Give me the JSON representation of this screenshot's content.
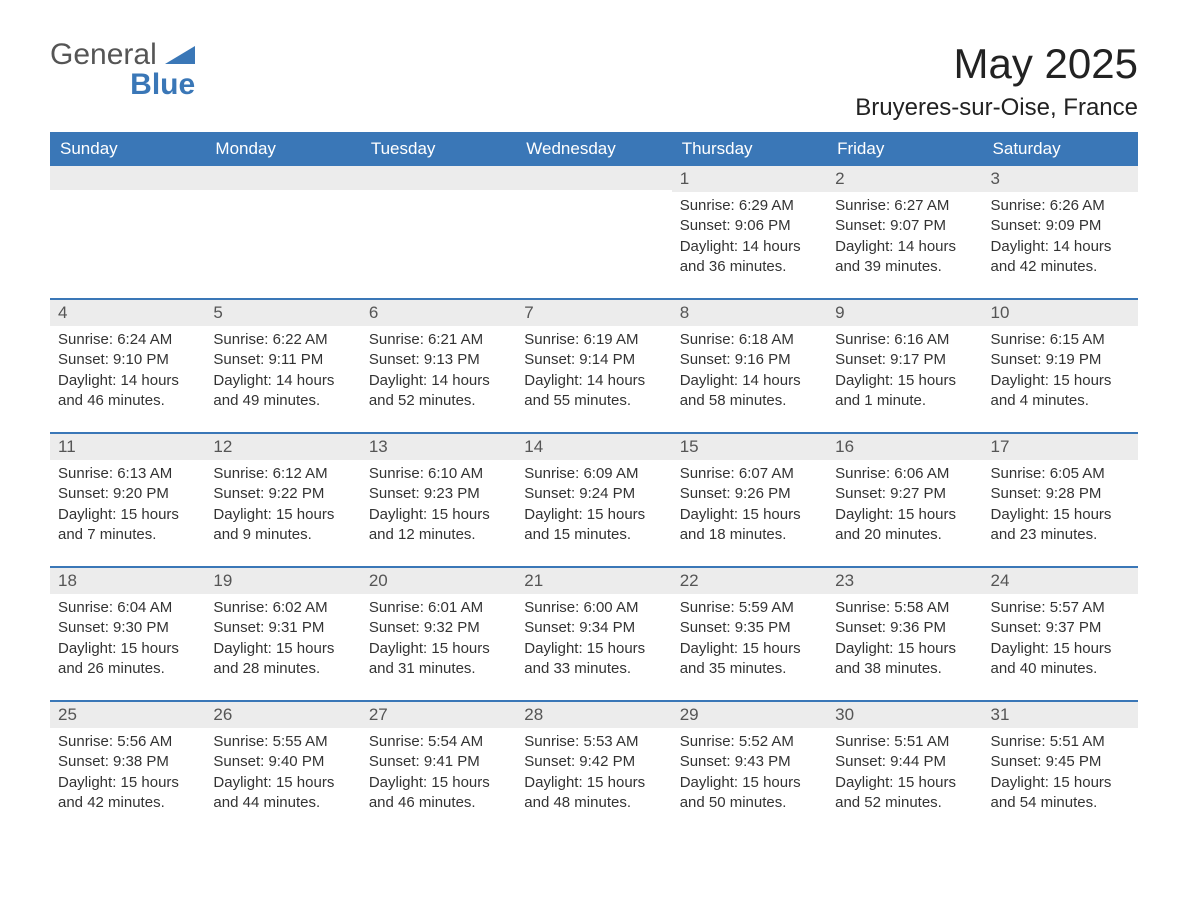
{
  "logo": {
    "word1": "General",
    "word2": "Blue",
    "color1": "#555555",
    "color2": "#3a77b7"
  },
  "title": "May 2025",
  "location": "Bruyeres-sur-Oise, France",
  "colors": {
    "header_bg": "#3a77b7",
    "header_text": "#ffffff",
    "daynum_bg": "#ececec",
    "daynum_text": "#555555",
    "body_text": "#333333",
    "week_border": "#3a77b7",
    "page_bg": "#ffffff"
  },
  "typography": {
    "title_fontsize": 42,
    "location_fontsize": 24,
    "dayhead_fontsize": 17,
    "daynum_fontsize": 17,
    "body_fontsize": 15,
    "logo_fontsize": 30
  },
  "layout": {
    "columns": 7,
    "rows": 5,
    "cell_min_height": 132
  },
  "day_names": [
    "Sunday",
    "Monday",
    "Tuesday",
    "Wednesday",
    "Thursday",
    "Friday",
    "Saturday"
  ],
  "weeks": [
    [
      {
        "day": "",
        "sunrise": "",
        "sunset": "",
        "daylight": ""
      },
      {
        "day": "",
        "sunrise": "",
        "sunset": "",
        "daylight": ""
      },
      {
        "day": "",
        "sunrise": "",
        "sunset": "",
        "daylight": ""
      },
      {
        "day": "",
        "sunrise": "",
        "sunset": "",
        "daylight": ""
      },
      {
        "day": "1",
        "sunrise": "Sunrise: 6:29 AM",
        "sunset": "Sunset: 9:06 PM",
        "daylight": "Daylight: 14 hours and 36 minutes."
      },
      {
        "day": "2",
        "sunrise": "Sunrise: 6:27 AM",
        "sunset": "Sunset: 9:07 PM",
        "daylight": "Daylight: 14 hours and 39 minutes."
      },
      {
        "day": "3",
        "sunrise": "Sunrise: 6:26 AM",
        "sunset": "Sunset: 9:09 PM",
        "daylight": "Daylight: 14 hours and 42 minutes."
      }
    ],
    [
      {
        "day": "4",
        "sunrise": "Sunrise: 6:24 AM",
        "sunset": "Sunset: 9:10 PM",
        "daylight": "Daylight: 14 hours and 46 minutes."
      },
      {
        "day": "5",
        "sunrise": "Sunrise: 6:22 AM",
        "sunset": "Sunset: 9:11 PM",
        "daylight": "Daylight: 14 hours and 49 minutes."
      },
      {
        "day": "6",
        "sunrise": "Sunrise: 6:21 AM",
        "sunset": "Sunset: 9:13 PM",
        "daylight": "Daylight: 14 hours and 52 minutes."
      },
      {
        "day": "7",
        "sunrise": "Sunrise: 6:19 AM",
        "sunset": "Sunset: 9:14 PM",
        "daylight": "Daylight: 14 hours and 55 minutes."
      },
      {
        "day": "8",
        "sunrise": "Sunrise: 6:18 AM",
        "sunset": "Sunset: 9:16 PM",
        "daylight": "Daylight: 14 hours and 58 minutes."
      },
      {
        "day": "9",
        "sunrise": "Sunrise: 6:16 AM",
        "sunset": "Sunset: 9:17 PM",
        "daylight": "Daylight: 15 hours and 1 minute."
      },
      {
        "day": "10",
        "sunrise": "Sunrise: 6:15 AM",
        "sunset": "Sunset: 9:19 PM",
        "daylight": "Daylight: 15 hours and 4 minutes."
      }
    ],
    [
      {
        "day": "11",
        "sunrise": "Sunrise: 6:13 AM",
        "sunset": "Sunset: 9:20 PM",
        "daylight": "Daylight: 15 hours and 7 minutes."
      },
      {
        "day": "12",
        "sunrise": "Sunrise: 6:12 AM",
        "sunset": "Sunset: 9:22 PM",
        "daylight": "Daylight: 15 hours and 9 minutes."
      },
      {
        "day": "13",
        "sunrise": "Sunrise: 6:10 AM",
        "sunset": "Sunset: 9:23 PM",
        "daylight": "Daylight: 15 hours and 12 minutes."
      },
      {
        "day": "14",
        "sunrise": "Sunrise: 6:09 AM",
        "sunset": "Sunset: 9:24 PM",
        "daylight": "Daylight: 15 hours and 15 minutes."
      },
      {
        "day": "15",
        "sunrise": "Sunrise: 6:07 AM",
        "sunset": "Sunset: 9:26 PM",
        "daylight": "Daylight: 15 hours and 18 minutes."
      },
      {
        "day": "16",
        "sunrise": "Sunrise: 6:06 AM",
        "sunset": "Sunset: 9:27 PM",
        "daylight": "Daylight: 15 hours and 20 minutes."
      },
      {
        "day": "17",
        "sunrise": "Sunrise: 6:05 AM",
        "sunset": "Sunset: 9:28 PM",
        "daylight": "Daylight: 15 hours and 23 minutes."
      }
    ],
    [
      {
        "day": "18",
        "sunrise": "Sunrise: 6:04 AM",
        "sunset": "Sunset: 9:30 PM",
        "daylight": "Daylight: 15 hours and 26 minutes."
      },
      {
        "day": "19",
        "sunrise": "Sunrise: 6:02 AM",
        "sunset": "Sunset: 9:31 PM",
        "daylight": "Daylight: 15 hours and 28 minutes."
      },
      {
        "day": "20",
        "sunrise": "Sunrise: 6:01 AM",
        "sunset": "Sunset: 9:32 PM",
        "daylight": "Daylight: 15 hours and 31 minutes."
      },
      {
        "day": "21",
        "sunrise": "Sunrise: 6:00 AM",
        "sunset": "Sunset: 9:34 PM",
        "daylight": "Daylight: 15 hours and 33 minutes."
      },
      {
        "day": "22",
        "sunrise": "Sunrise: 5:59 AM",
        "sunset": "Sunset: 9:35 PM",
        "daylight": "Daylight: 15 hours and 35 minutes."
      },
      {
        "day": "23",
        "sunrise": "Sunrise: 5:58 AM",
        "sunset": "Sunset: 9:36 PM",
        "daylight": "Daylight: 15 hours and 38 minutes."
      },
      {
        "day": "24",
        "sunrise": "Sunrise: 5:57 AM",
        "sunset": "Sunset: 9:37 PM",
        "daylight": "Daylight: 15 hours and 40 minutes."
      }
    ],
    [
      {
        "day": "25",
        "sunrise": "Sunrise: 5:56 AM",
        "sunset": "Sunset: 9:38 PM",
        "daylight": "Daylight: 15 hours and 42 minutes."
      },
      {
        "day": "26",
        "sunrise": "Sunrise: 5:55 AM",
        "sunset": "Sunset: 9:40 PM",
        "daylight": "Daylight: 15 hours and 44 minutes."
      },
      {
        "day": "27",
        "sunrise": "Sunrise: 5:54 AM",
        "sunset": "Sunset: 9:41 PM",
        "daylight": "Daylight: 15 hours and 46 minutes."
      },
      {
        "day": "28",
        "sunrise": "Sunrise: 5:53 AM",
        "sunset": "Sunset: 9:42 PM",
        "daylight": "Daylight: 15 hours and 48 minutes."
      },
      {
        "day": "29",
        "sunrise": "Sunrise: 5:52 AM",
        "sunset": "Sunset: 9:43 PM",
        "daylight": "Daylight: 15 hours and 50 minutes."
      },
      {
        "day": "30",
        "sunrise": "Sunrise: 5:51 AM",
        "sunset": "Sunset: 9:44 PM",
        "daylight": "Daylight: 15 hours and 52 minutes."
      },
      {
        "day": "31",
        "sunrise": "Sunrise: 5:51 AM",
        "sunset": "Sunset: 9:45 PM",
        "daylight": "Daylight: 15 hours and 54 minutes."
      }
    ]
  ]
}
